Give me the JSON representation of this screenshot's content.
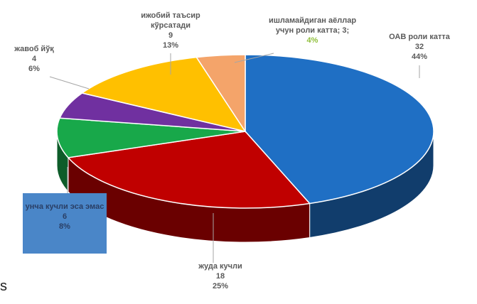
{
  "chart_data": {
    "type": "pie3d",
    "categories": [
      "ОАВ роли катта",
      "жуда кучли",
      "унча кучли эса эмас",
      "жавоб йўқ",
      "ижобий таъсир кўрсатади",
      "ишламайдиган аёллар учун роли катта"
    ],
    "values": [
      32,
      18,
      6,
      4,
      9,
      3
    ],
    "percent_labels": [
      "44%",
      "25%",
      "8%",
      "6%",
      "13%",
      "4%"
    ],
    "colors": [
      "#1f6fc4",
      "#c00000",
      "#18a84a",
      "#7030a0",
      "#ffc000",
      "#f4a46a"
    ],
    "label_separator": ";",
    "stray_text": "s"
  }
}
